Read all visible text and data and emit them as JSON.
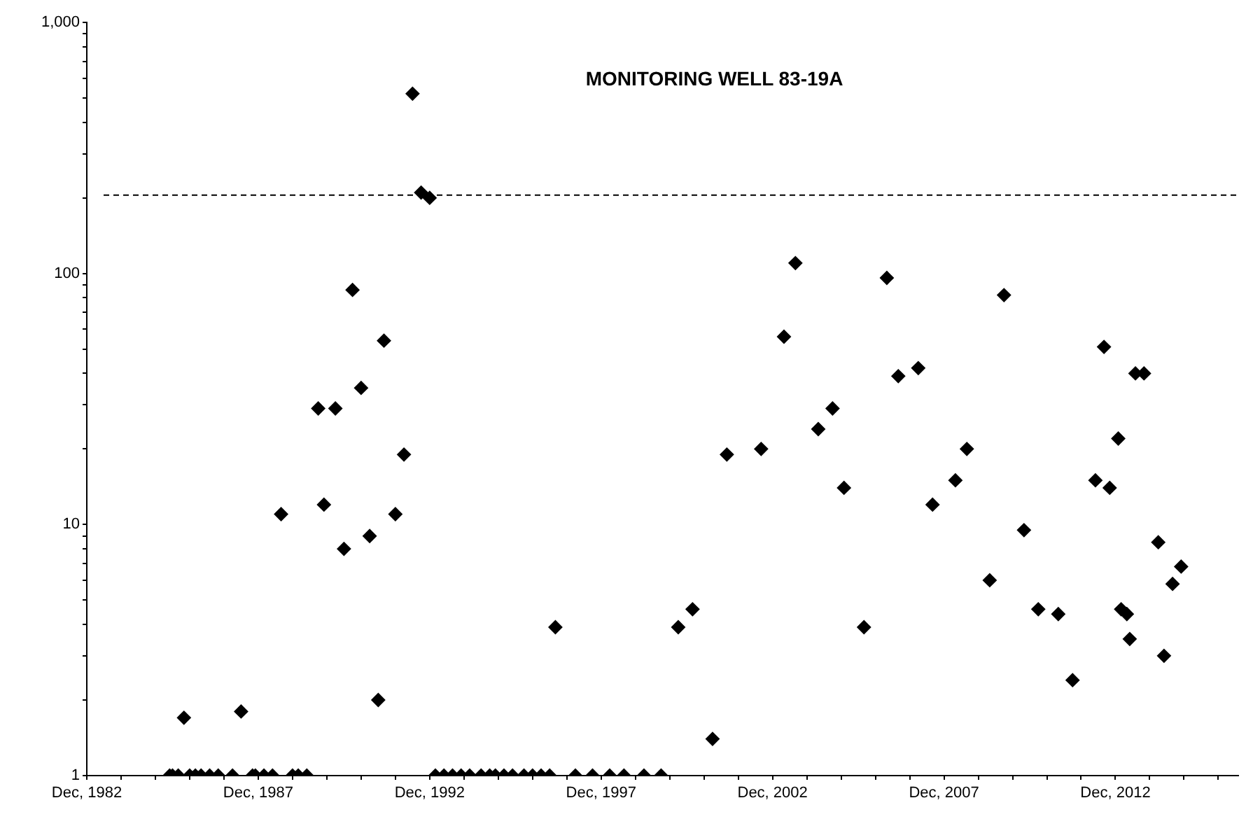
{
  "chart_data": {
    "type": "scatter",
    "title": "MONITORING WELL 83-19A",
    "marker": "diamond",
    "log": "y",
    "grid": false,
    "legend": false,
    "xlim": [
      "1982-12",
      "2016-07"
    ],
    "xticks": [
      {
        "value": "1982-12",
        "label": "Dec, 1982"
      },
      {
        "value": "1983-12",
        "label": null
      },
      {
        "value": "1984-12",
        "label": null
      },
      {
        "value": "1985-12",
        "label": null
      },
      {
        "value": "1986-12",
        "label": null
      },
      {
        "value": "1987-12",
        "label": "Dec, 1987"
      },
      {
        "value": "1988-12",
        "label": null
      },
      {
        "value": "1989-12",
        "label": null
      },
      {
        "value": "1990-12",
        "label": null
      },
      {
        "value": "1991-12",
        "label": null
      },
      {
        "value": "1992-12",
        "label": "Dec, 1992"
      },
      {
        "value": "1993-12",
        "label": null
      },
      {
        "value": "1994-12",
        "label": null
      },
      {
        "value": "1995-12",
        "label": null
      },
      {
        "value": "1996-12",
        "label": null
      },
      {
        "value": "1997-12",
        "label": "Dec, 1997"
      },
      {
        "value": "1998-12",
        "label": null
      },
      {
        "value": "1999-12",
        "label": null
      },
      {
        "value": "2000-12",
        "label": null
      },
      {
        "value": "2001-12",
        "label": null
      },
      {
        "value": "2002-12",
        "label": "Dec, 2002"
      },
      {
        "value": "2003-12",
        "label": null
      },
      {
        "value": "2004-12",
        "label": null
      },
      {
        "value": "2005-12",
        "label": null
      },
      {
        "value": "2006-12",
        "label": null
      },
      {
        "value": "2007-12",
        "label": "Dec, 2007"
      },
      {
        "value": "2008-12",
        "label": null
      },
      {
        "value": "2009-12",
        "label": null
      },
      {
        "value": "2010-12",
        "label": null
      },
      {
        "value": "2011-12",
        "label": null
      },
      {
        "value": "2012-12",
        "label": "Dec, 2012"
      },
      {
        "value": "2013-12",
        "label": null
      },
      {
        "value": "2014-12",
        "label": null
      },
      {
        "value": "2015-12",
        "label": null
      }
    ],
    "ylim": [
      1,
      1000
    ],
    "yticks": [
      1,
      {
        "value": 2,
        "label": null
      },
      {
        "value": 3,
        "label": null
      },
      {
        "value": 4,
        "label": null
      },
      {
        "value": 5,
        "label": null
      },
      {
        "value": 6,
        "label": null
      },
      {
        "value": 7,
        "label": null
      },
      {
        "value": 8,
        "label": null
      },
      {
        "value": 9,
        "label": null
      },
      10,
      {
        "value": 20,
        "label": null
      },
      {
        "value": 30,
        "label": null
      },
      {
        "value": 40,
        "label": null
      },
      {
        "value": 50,
        "label": null
      },
      {
        "value": 60,
        "label": null
      },
      {
        "value": 70,
        "label": null
      },
      {
        "value": 80,
        "label": null
      },
      {
        "value": 90,
        "label": null
      },
      100,
      {
        "value": 200,
        "label": null
      },
      {
        "value": 300,
        "label": null
      },
      {
        "value": 400,
        "label": null
      },
      {
        "value": 500,
        "label": null
      },
      {
        "value": 600,
        "label": null
      },
      {
        "value": 700,
        "label": null
      },
      {
        "value": 800,
        "label": null
      },
      {
        "value": 900,
        "label": null
      },
      {
        "value": 1000,
        "label": "1,000"
      }
    ],
    "ref_lines": [
      {
        "axis": "y",
        "value": 205,
        "label": null,
        "color": "#000000",
        "line_style": "dashed"
      }
    ],
    "series": [
      {
        "color": "#000000",
        "x": [
          "1985-05",
          "1985-06",
          "1985-08",
          "1985-10",
          "1985-12",
          "1986-02",
          "1986-04",
          "1986-07",
          "1986-10",
          "1987-03",
          "1987-06",
          "1987-10",
          "1987-11",
          "1988-02",
          "1988-05",
          "1988-08",
          "1988-12",
          "1989-02",
          "1989-05",
          "1989-09",
          "1989-11",
          "1990-03",
          "1990-06",
          "1990-09",
          "1990-12",
          "1991-03",
          "1991-06",
          "1991-08",
          "1991-12",
          "1992-03",
          "1992-06",
          "1992-09",
          "1992-12",
          "1993-02",
          "1993-05",
          "1993-08",
          "1993-11",
          "1994-02",
          "1994-06",
          "1994-09",
          "1994-11",
          "1995-02",
          "1995-05",
          "1995-09",
          "1995-12",
          "1996-03",
          "1996-06",
          "1996-08",
          "1997-03",
          "1997-09",
          "1998-03",
          "1998-08",
          "1999-03",
          "1999-09",
          "2000-03",
          "2000-08",
          "2001-03",
          "2001-08",
          "2002-08",
          "2003-04",
          "2003-08",
          "2004-04",
          "2004-09",
          "2005-01",
          "2005-08",
          "2006-04",
          "2006-08",
          "2007-03",
          "2007-08",
          "2008-04",
          "2008-08",
          "2009-04",
          "2009-09",
          "2010-04",
          "2010-09",
          "2011-04",
          "2011-09",
          "2012-05",
          "2012-08",
          "2012-10",
          "2013-01",
          "2013-02",
          "2013-04",
          "2013-05",
          "2013-07",
          "2013-10",
          "2014-03",
          "2014-05",
          "2014-08",
          "2014-11"
        ],
        "values": [
          1,
          1,
          1,
          1.7,
          1,
          1,
          1,
          1,
          1,
          1,
          1.8,
          1,
          1,
          1,
          1,
          11,
          1,
          1,
          1,
          29,
          12,
          29,
          8,
          86,
          35,
          9,
          2,
          54,
          11,
          19,
          520,
          210,
          200,
          1,
          1,
          1,
          1,
          1,
          1,
          1,
          1,
          1,
          1,
          1,
          1,
          1,
          1,
          3.9,
          1,
          1,
          1,
          1,
          1,
          1,
          3.9,
          4.6,
          1.4,
          19,
          20,
          56,
          110,
          24,
          29,
          14,
          3.9,
          96,
          39,
          42,
          12,
          15,
          20,
          6,
          82,
          9.5,
          4.6,
          4.4,
          2.4,
          15,
          51,
          14,
          22,
          4.6,
          4.4,
          3.5,
          40,
          40,
          8.5,
          3.0,
          5.8,
          6.8
        ]
      }
    ]
  }
}
